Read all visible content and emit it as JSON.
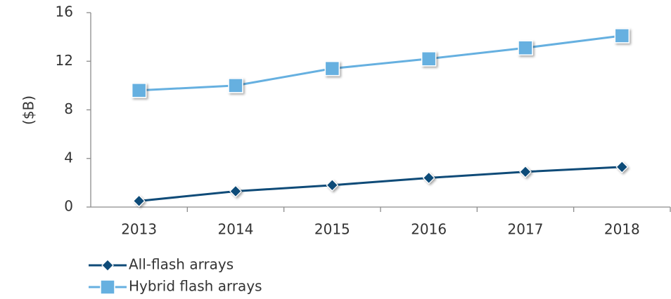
{
  "chart_data": {
    "type": "line",
    "ylabel": "($B)",
    "categories": [
      "2013",
      "2014",
      "2015",
      "2016",
      "2017",
      "2018"
    ],
    "series": [
      {
        "name": "All-flash arrays",
        "color": "#0f4b78",
        "marker": "diamond",
        "values": [
          0.5,
          1.3,
          1.8,
          2.4,
          2.9,
          3.3
        ]
      },
      {
        "name": "Hybrid flash arrays",
        "color": "#66b0e0",
        "marker": "square",
        "values": [
          9.6,
          10.0,
          11.4,
          12.2,
          13.1,
          14.1
        ]
      }
    ],
    "ylim": [
      0,
      16
    ],
    "yticks": [
      0,
      4,
      8,
      12,
      16
    ],
    "grid": false,
    "legend": "bottom-left"
  }
}
